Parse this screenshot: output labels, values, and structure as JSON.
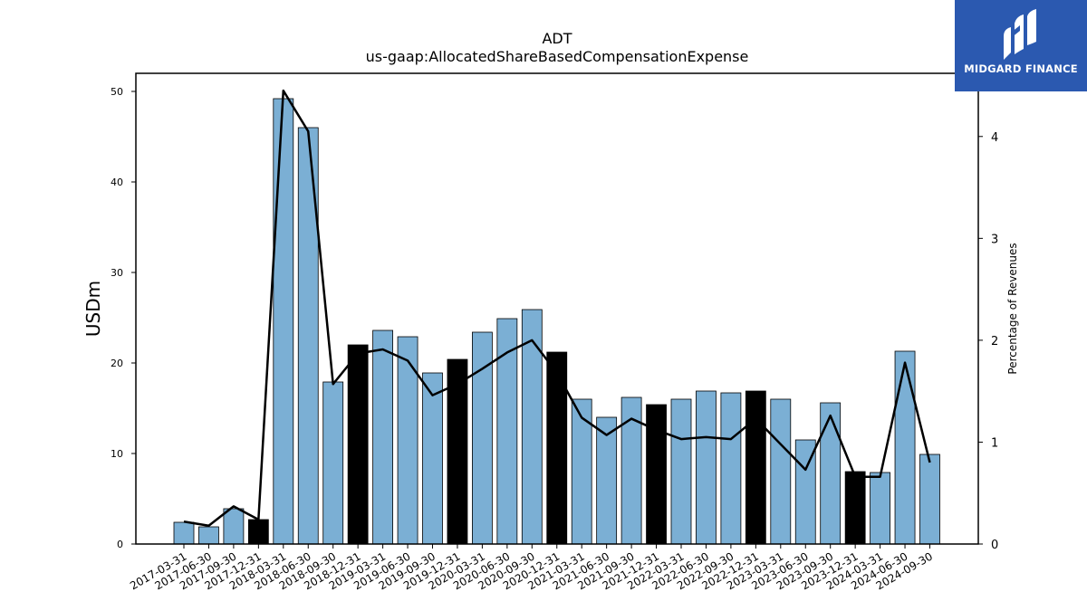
{
  "chart_data": {
    "type": "bar",
    "title": "ADT",
    "subtitle": "us-gaap:AllocatedShareBasedCompensationExpense",
    "ylabel": "USDm",
    "y2label": "Percentage of Revenues",
    "ylim": [
      0,
      52
    ],
    "y2lim": [
      0,
      4.62
    ],
    "yticks": [
      0,
      10,
      20,
      30,
      40,
      50
    ],
    "y2ticks": [
      0,
      1,
      2,
      3,
      4
    ],
    "grid": false,
    "colors": {
      "bar": "#7bafd4",
      "highlight": "#000000",
      "line": "#000000"
    },
    "categories": [
      "2017-03-31",
      "2017-06-30",
      "2017-09-30",
      "2017-12-31",
      "2018-03-31",
      "2018-06-30",
      "2018-09-30",
      "2018-12-31",
      "2019-03-31",
      "2019-06-30",
      "2019-09-30",
      "2019-12-31",
      "2020-03-31",
      "2020-06-30",
      "2020-09-30",
      "2020-12-31",
      "2021-03-31",
      "2021-06-30",
      "2021-09-30",
      "2021-12-31",
      "2022-03-31",
      "2022-06-30",
      "2022-09-30",
      "2022-12-31",
      "2023-03-31",
      "2023-06-30",
      "2023-09-30",
      "2023-12-31",
      "2024-03-31",
      "2024-06-30",
      "2024-09-30"
    ],
    "values": [
      2.4,
      1.9,
      3.9,
      2.7,
      49.2,
      46.0,
      17.9,
      22.0,
      23.6,
      22.9,
      18.9,
      20.4,
      23.4,
      24.9,
      25.9,
      21.2,
      16.0,
      14.0,
      16.2,
      15.4,
      16.0,
      16.9,
      16.7,
      16.9,
      16.0,
      11.5,
      15.6,
      8.0,
      7.9,
      21.3,
      9.9
    ],
    "highlight": [
      false,
      false,
      false,
      true,
      false,
      false,
      false,
      true,
      false,
      false,
      false,
      true,
      false,
      false,
      false,
      true,
      false,
      false,
      false,
      true,
      false,
      false,
      false,
      true,
      false,
      false,
      false,
      true,
      false,
      false,
      false
    ],
    "pct_of_revenue": [
      0.22,
      0.18,
      0.37,
      0.24,
      4.45,
      4.05,
      1.57,
      1.87,
      1.91,
      1.8,
      1.46,
      1.57,
      1.72,
      1.88,
      2.0,
      1.68,
      1.24,
      1.07,
      1.23,
      1.12,
      1.03,
      1.05,
      1.03,
      1.23,
      0.98,
      0.73,
      1.26,
      0.66,
      0.66,
      1.78,
      0.8
    ]
  },
  "logo": {
    "text": "MIDGARD FINANCE",
    "icon": "midgard-logo-icon",
    "color": "#2b59b0"
  }
}
